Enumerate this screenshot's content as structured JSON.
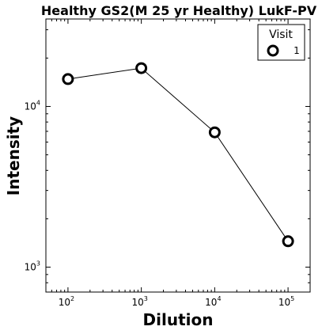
{
  "chart_data": {
    "type": "line",
    "title": "Healthy GS2(M 25 yr Healthy) LukF-PV",
    "xlabel": "Dilution",
    "ylabel": "Intensity",
    "xscale": "log",
    "yscale": "log",
    "xlim": [
      50,
      200000
    ],
    "ylim": [
      700,
      35000
    ],
    "grid": false,
    "legend": {
      "title": "Visit",
      "placement": "top-right"
    },
    "x_ticks": [
      {
        "base": "10",
        "exp": "2",
        "value": 100
      },
      {
        "base": "10",
        "exp": "3",
        "value": 1000
      },
      {
        "base": "10",
        "exp": "4",
        "value": 10000
      },
      {
        "base": "10",
        "exp": "5",
        "value": 100000
      }
    ],
    "y_ticks": [
      {
        "base": "10",
        "exp": "3",
        "value": 1000
      },
      {
        "base": "10",
        "exp": "4",
        "value": 10000
      }
    ],
    "series": [
      {
        "name": "1",
        "x": [
          100,
          1000,
          10000,
          100000
        ],
        "y": [
          14800,
          17300,
          6900,
          1450
        ],
        "color": "#000000",
        "marker": "open-circle"
      }
    ]
  }
}
